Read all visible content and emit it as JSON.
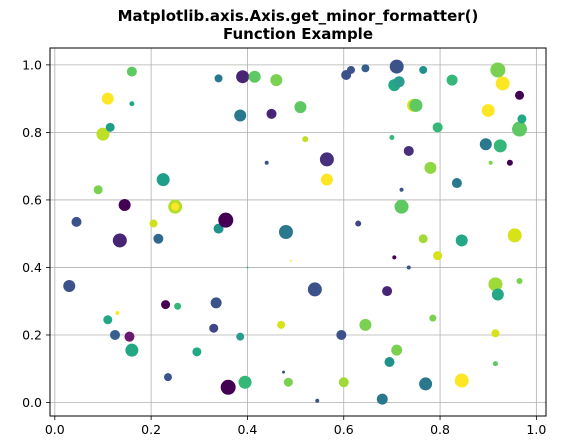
{
  "chart_data": {
    "type": "scatter",
    "title_lines": [
      "Matplotlib.axis.Axis.get_minor_formatter()",
      "Function Example"
    ],
    "xlabel": "",
    "ylabel": "",
    "xlim": [
      -0.01,
      1.02
    ],
    "ylim": [
      -0.04,
      1.05
    ],
    "x_ticks": [
      0.0,
      0.2,
      0.4,
      0.6,
      0.8,
      1.0
    ],
    "x_tick_labels": [
      "0.0",
      "0.2",
      "0.4",
      "0.6",
      "0.8",
      "1.0"
    ],
    "y_ticks": [
      0.0,
      0.2,
      0.4,
      0.6,
      0.8,
      1.0
    ],
    "y_tick_labels": [
      "0.0",
      "0.2",
      "0.4",
      "0.6",
      "0.8",
      "1.0"
    ],
    "grid": true,
    "legend": "none",
    "colormap": "viridis",
    "points": [
      {
        "x": 0.03,
        "y": 0.345,
        "size": 6,
        "color": "#3b528b"
      },
      {
        "x": 0.045,
        "y": 0.535,
        "size": 5,
        "color": "#3b528b"
      },
      {
        "x": 0.09,
        "y": 0.63,
        "size": 4.5,
        "color": "#7ad151"
      },
      {
        "x": 0.1,
        "y": 0.795,
        "size": 6.5,
        "color": "#bddf26"
      },
      {
        "x": 0.11,
        "y": 0.9,
        "size": 6,
        "color": "#fde725"
      },
      {
        "x": 0.115,
        "y": 0.815,
        "size": 4.5,
        "color": "#1f9e89"
      },
      {
        "x": 0.11,
        "y": 0.245,
        "size": 4.5,
        "color": "#22a884"
      },
      {
        "x": 0.125,
        "y": 0.2,
        "size": 5,
        "color": "#355f8d"
      },
      {
        "x": 0.13,
        "y": 0.265,
        "size": 2,
        "color": "#fde725"
      },
      {
        "x": 0.135,
        "y": 0.48,
        "size": 7,
        "color": "#482475"
      },
      {
        "x": 0.145,
        "y": 0.585,
        "size": 6,
        "color": "#440154"
      },
      {
        "x": 0.155,
        "y": 0.195,
        "size": 5,
        "color": "#6a176e"
      },
      {
        "x": 0.16,
        "y": 0.155,
        "size": 6.5,
        "color": "#22a884"
      },
      {
        "x": 0.16,
        "y": 0.98,
        "size": 5,
        "color": "#5ec962"
      },
      {
        "x": 0.16,
        "y": 0.885,
        "size": 2.5,
        "color": "#22a884"
      },
      {
        "x": 0.205,
        "y": 0.53,
        "size": 4,
        "color": "#d0e11c"
      },
      {
        "x": 0.215,
        "y": 0.485,
        "size": 5,
        "color": "#31688e"
      },
      {
        "x": 0.225,
        "y": 0.66,
        "size": 6.5,
        "color": "#1f9e89"
      },
      {
        "x": 0.23,
        "y": 0.29,
        "size": 4.5,
        "color": "#440154"
      },
      {
        "x": 0.235,
        "y": 0.075,
        "size": 4,
        "color": "#3b528b"
      },
      {
        "x": 0.25,
        "y": 0.58,
        "size": 7,
        "color": "#b5de2b"
      },
      {
        "x": 0.25,
        "y": 0.58,
        "size": 4,
        "color": "#fde725"
      },
      {
        "x": 0.255,
        "y": 0.285,
        "size": 3.5,
        "color": "#35b779"
      },
      {
        "x": 0.295,
        "y": 0.15,
        "size": 4.5,
        "color": "#22a884"
      },
      {
        "x": 0.33,
        "y": 0.22,
        "size": 4.5,
        "color": "#414487"
      },
      {
        "x": 0.335,
        "y": 0.295,
        "size": 5.5,
        "color": "#3b528b"
      },
      {
        "x": 0.34,
        "y": 0.515,
        "size": 5,
        "color": "#21918c"
      },
      {
        "x": 0.34,
        "y": 0.96,
        "size": 4,
        "color": "#2a788e"
      },
      {
        "x": 0.355,
        "y": 0.54,
        "size": 7.5,
        "color": "#440154"
      },
      {
        "x": 0.36,
        "y": 0.045,
        "size": 7.5,
        "color": "#440154"
      },
      {
        "x": 0.385,
        "y": 0.195,
        "size": 4,
        "color": "#2a9d8f"
      },
      {
        "x": 0.385,
        "y": 0.85,
        "size": 6,
        "color": "#2a788e"
      },
      {
        "x": 0.39,
        "y": 0.965,
        "size": 6.5,
        "color": "#482475"
      },
      {
        "x": 0.395,
        "y": 0.06,
        "size": 6.5,
        "color": "#35b779"
      },
      {
        "x": 0.4,
        "y": 0.4,
        "size": 1,
        "color": "#35b779"
      },
      {
        "x": 0.415,
        "y": 0.965,
        "size": 6,
        "color": "#5ec962"
      },
      {
        "x": 0.44,
        "y": 0.71,
        "size": 2,
        "color": "#3b528b"
      },
      {
        "x": 0.45,
        "y": 0.855,
        "size": 5,
        "color": "#482475"
      },
      {
        "x": 0.46,
        "y": 0.955,
        "size": 6,
        "color": "#7ad151"
      },
      {
        "x": 0.47,
        "y": 0.23,
        "size": 4,
        "color": "#d8e219"
      },
      {
        "x": 0.475,
        "y": 0.09,
        "size": 1.5,
        "color": "#3b528b"
      },
      {
        "x": 0.48,
        "y": 0.505,
        "size": 7,
        "color": "#2a788e"
      },
      {
        "x": 0.485,
        "y": 0.06,
        "size": 4.5,
        "color": "#7ad151"
      },
      {
        "x": 0.49,
        "y": 0.42,
        "size": 1,
        "color": "#fde725"
      },
      {
        "x": 0.51,
        "y": 0.875,
        "size": 6,
        "color": "#5ec962"
      },
      {
        "x": 0.52,
        "y": 0.78,
        "size": 3,
        "color": "#c2df23"
      },
      {
        "x": 0.54,
        "y": 0.335,
        "size": 7,
        "color": "#3b528b"
      },
      {
        "x": 0.545,
        "y": 0.005,
        "size": 2,
        "color": "#3b528b"
      },
      {
        "x": 0.565,
        "y": 0.72,
        "size": 7,
        "color": "#472f7d"
      },
      {
        "x": 0.565,
        "y": 0.66,
        "size": 6,
        "color": "#fde725"
      },
      {
        "x": 0.595,
        "y": 0.2,
        "size": 5,
        "color": "#3b528b"
      },
      {
        "x": 0.6,
        "y": 0.06,
        "size": 5,
        "color": "#a0da39"
      },
      {
        "x": 0.605,
        "y": 0.97,
        "size": 5,
        "color": "#3b528b"
      },
      {
        "x": 0.615,
        "y": 0.985,
        "size": 4,
        "color": "#3b528b"
      },
      {
        "x": 0.63,
        "y": 0.53,
        "size": 3,
        "color": "#414487"
      },
      {
        "x": 0.645,
        "y": 0.23,
        "size": 6,
        "color": "#7ad151"
      },
      {
        "x": 0.645,
        "y": 0.99,
        "size": 4,
        "color": "#355f8d"
      },
      {
        "x": 0.68,
        "y": 0.01,
        "size": 5.5,
        "color": "#2a788e"
      },
      {
        "x": 0.69,
        "y": 0.33,
        "size": 5,
        "color": "#482475"
      },
      {
        "x": 0.695,
        "y": 0.12,
        "size": 5,
        "color": "#21918c"
      },
      {
        "x": 0.7,
        "y": 0.785,
        "size": 2.5,
        "color": "#35b779"
      },
      {
        "x": 0.705,
        "y": 0.94,
        "size": 6,
        "color": "#22a884"
      },
      {
        "x": 0.705,
        "y": 0.43,
        "size": 2,
        "color": "#440154"
      },
      {
        "x": 0.71,
        "y": 0.155,
        "size": 5.5,
        "color": "#7ad151"
      },
      {
        "x": 0.71,
        "y": 0.995,
        "size": 7,
        "color": "#3b528b"
      },
      {
        "x": 0.715,
        "y": 0.95,
        "size": 5.5,
        "color": "#2a9d8f"
      },
      {
        "x": 0.72,
        "y": 0.58,
        "size": 7,
        "color": "#5ec962"
      },
      {
        "x": 0.72,
        "y": 0.63,
        "size": 2,
        "color": "#3b528b"
      },
      {
        "x": 0.735,
        "y": 0.745,
        "size": 5,
        "color": "#472f7d"
      },
      {
        "x": 0.735,
        "y": 0.4,
        "size": 2,
        "color": "#3b528b"
      },
      {
        "x": 0.745,
        "y": 0.88,
        "size": 6.5,
        "color": "#d8e219"
      },
      {
        "x": 0.75,
        "y": 0.88,
        "size": 6.5,
        "color": "#5ec962"
      },
      {
        "x": 0.765,
        "y": 0.485,
        "size": 4.5,
        "color": "#a0da39"
      },
      {
        "x": 0.765,
        "y": 0.985,
        "size": 4,
        "color": "#21918c"
      },
      {
        "x": 0.77,
        "y": 0.055,
        "size": 6.5,
        "color": "#2a788e"
      },
      {
        "x": 0.78,
        "y": 0.695,
        "size": 6,
        "color": "#8fd744"
      },
      {
        "x": 0.785,
        "y": 0.25,
        "size": 3.5,
        "color": "#7ad151"
      },
      {
        "x": 0.795,
        "y": 0.435,
        "size": 4.5,
        "color": "#d8e219"
      },
      {
        "x": 0.795,
        "y": 0.815,
        "size": 5,
        "color": "#35b779"
      },
      {
        "x": 0.825,
        "y": 0.955,
        "size": 5.5,
        "color": "#35b779"
      },
      {
        "x": 0.835,
        "y": 0.65,
        "size": 5,
        "color": "#2a788e"
      },
      {
        "x": 0.845,
        "y": 0.48,
        "size": 6,
        "color": "#22a884"
      },
      {
        "x": 0.845,
        "y": 0.065,
        "size": 7,
        "color": "#fde725"
      },
      {
        "x": 0.895,
        "y": 0.765,
        "size": 6,
        "color": "#2a788e"
      },
      {
        "x": 0.9,
        "y": 0.865,
        "size": 6.5,
        "color": "#fde725"
      },
      {
        "x": 0.905,
        "y": 0.71,
        "size": 2,
        "color": "#7ad151"
      },
      {
        "x": 0.915,
        "y": 0.115,
        "size": 2.5,
        "color": "#5ec962"
      },
      {
        "x": 0.915,
        "y": 0.205,
        "size": 4,
        "color": "#d8e219"
      },
      {
        "x": 0.915,
        "y": 0.35,
        "size": 7,
        "color": "#a0da39"
      },
      {
        "x": 0.92,
        "y": 0.985,
        "size": 7.5,
        "color": "#7ad151"
      },
      {
        "x": 0.92,
        "y": 0.32,
        "size": 6,
        "color": "#22a884"
      },
      {
        "x": 0.925,
        "y": 0.76,
        "size": 6.5,
        "color": "#35b779"
      },
      {
        "x": 0.93,
        "y": 0.945,
        "size": 7,
        "color": "#fde725"
      },
      {
        "x": 0.945,
        "y": 0.71,
        "size": 3,
        "color": "#440154"
      },
      {
        "x": 0.955,
        "y": 0.495,
        "size": 7,
        "color": "#d8e219"
      },
      {
        "x": 0.965,
        "y": 0.91,
        "size": 4.5,
        "color": "#440154"
      },
      {
        "x": 0.965,
        "y": 0.36,
        "size": 3,
        "color": "#7ad151"
      },
      {
        "x": 0.965,
        "y": 0.81,
        "size": 7.5,
        "color": "#5ec962"
      },
      {
        "x": 0.97,
        "y": 0.84,
        "size": 4.5,
        "color": "#22a884"
      }
    ]
  },
  "colors": {
    "grid": "#b0b0b0",
    "axes": "#000000",
    "background": "#ffffff"
  }
}
